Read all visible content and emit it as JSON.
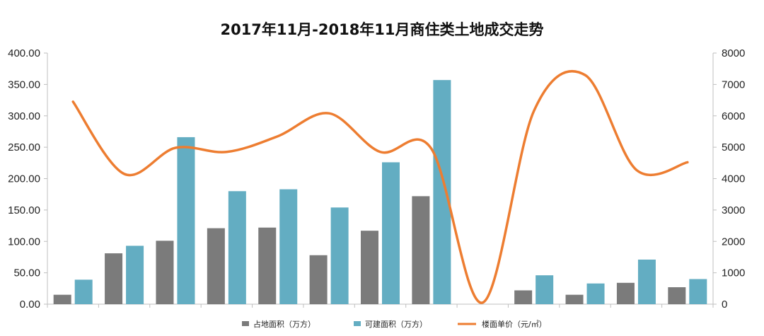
{
  "chart_data": {
    "type": "bar",
    "title": "2017年11月-2018年11月商住类土地成交走势",
    "xlabel": "",
    "ylabel": "",
    "categories": [
      "",
      "",
      "",
      "",
      "",
      "",
      "",
      "",
      "",
      "",
      "",
      "",
      ""
    ],
    "ylim": [
      0,
      400
    ],
    "y2lim": [
      0,
      8000
    ],
    "yticks": [
      "0.00",
      "50.00",
      "100.00",
      "150.00",
      "200.00",
      "250.00",
      "300.00",
      "350.00",
      "400.00"
    ],
    "y2ticks": [
      "0",
      "1000",
      "2000",
      "3000",
      "4000",
      "5000",
      "6000",
      "7000",
      "8000"
    ],
    "grid": false,
    "legend_position": "bottom",
    "series": [
      {
        "name": "占地面积（万方）",
        "type": "bar",
        "axis": "left",
        "color": "#7b7b7b",
        "values": [
          15,
          81,
          101,
          121,
          122,
          78,
          117,
          172,
          0,
          22,
          15,
          34,
          27
        ]
      },
      {
        "name": "可建面积（万方）",
        "type": "bar",
        "axis": "left",
        "color": "#63adc2",
        "values": [
          39,
          93,
          266,
          180,
          183,
          154,
          226,
          357,
          0,
          46,
          33,
          71,
          40
        ]
      },
      {
        "name": "楼面单价（元/㎡）",
        "type": "line",
        "axis": "right",
        "color": "#ed7d31",
        "values": [
          6450,
          4150,
          4980,
          4850,
          5350,
          6080,
          4850,
          4950,
          50,
          6150,
          7300,
          4280,
          4520
        ]
      }
    ]
  }
}
